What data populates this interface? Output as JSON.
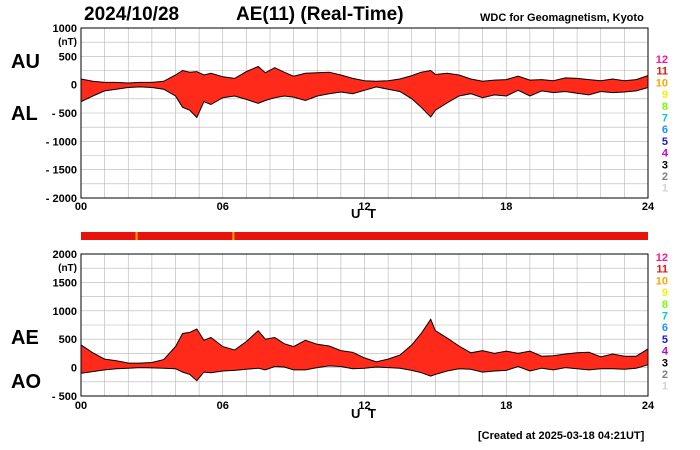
{
  "header": {
    "date": "2024/10/28",
    "title": "AE(11) (Real-Time)",
    "source": "WDC for Geomagnetism, Kyoto"
  },
  "footer": {
    "created": "[Created at 2025-03-18 04:21UT]"
  },
  "station_count_colors": [
    {
      "n": "12",
      "color": "#ff1493"
    },
    {
      "n": "11",
      "color": "#e8140a"
    },
    {
      "n": "10",
      "color": "#ffa500"
    },
    {
      "n": "9",
      "color": "#f2f200"
    },
    {
      "n": "8",
      "color": "#7cfc00"
    },
    {
      "n": "7",
      "color": "#00ced1"
    },
    {
      "n": "6",
      "color": "#1e90ff"
    },
    {
      "n": "5",
      "color": "#1a1acd"
    },
    {
      "n": "4",
      "color": "#cc00cc"
    },
    {
      "n": "3",
      "color": "#000000"
    },
    {
      "n": "2",
      "color": "#808080"
    },
    {
      "n": "1",
      "color": "#d3d3d3"
    }
  ],
  "availability_bar": {
    "color": "#e8140a",
    "orange_marks_hours": [
      2.35,
      6.45
    ],
    "orange_color": "#ffa500"
  },
  "chart_data": [
    {
      "type": "area",
      "name": "AU/AL",
      "labels": [
        "AU",
        "AL"
      ],
      "ylabel": "(nT)",
      "xlabel": "U T",
      "ylim": [
        -2000,
        1000
      ],
      "xlim": [
        0,
        24
      ],
      "yticks": [
        1000,
        500,
        0,
        -500,
        -1000,
        -1500,
        -2000
      ],
      "ytick_labels": [
        "1000",
        "500",
        "0",
        "- 500",
        "- 1000",
        "- 1500",
        "- 2000"
      ],
      "xticks": [
        0,
        6,
        12,
        18,
        24
      ],
      "xtick_labels": [
        "00",
        "06",
        "12",
        "18",
        "24"
      ],
      "fill_color": "#ff2a1a",
      "upper": {
        "x": [
          0,
          0.5,
          1,
          1.5,
          2,
          2.5,
          3,
          3.5,
          4,
          4.3,
          4.6,
          4.9,
          5.2,
          5.5,
          6,
          6.5,
          7,
          7.5,
          7.8,
          8.2,
          8.6,
          9,
          9.5,
          10,
          10.5,
          11,
          11.5,
          12,
          12.5,
          13,
          13.5,
          14,
          14.4,
          14.8,
          15,
          15.5,
          16,
          16.5,
          17,
          17.5,
          18,
          18.5,
          19,
          19.5,
          20,
          20.5,
          21,
          21.5,
          22,
          22.5,
          23,
          23.5,
          24
        ],
        "y": [
          100,
          60,
          40,
          40,
          30,
          40,
          40,
          60,
          170,
          250,
          220,
          230,
          170,
          200,
          140,
          110,
          230,
          320,
          210,
          300,
          220,
          150,
          200,
          210,
          220,
          170,
          110,
          70,
          60,
          70,
          100,
          160,
          220,
          250,
          180,
          200,
          170,
          100,
          60,
          80,
          90,
          150,
          80,
          90,
          70,
          120,
          110,
          90,
          70,
          100,
          70,
          90,
          160
        ]
      },
      "lower": {
        "x": [
          0,
          0.5,
          1,
          1.5,
          2,
          2.5,
          3,
          3.5,
          4,
          4.3,
          4.6,
          4.9,
          5.2,
          5.5,
          6,
          6.5,
          7,
          7.5,
          7.8,
          8.2,
          8.6,
          9,
          9.5,
          10,
          10.5,
          11,
          11.5,
          12,
          12.5,
          13,
          13.5,
          14,
          14.4,
          14.8,
          15,
          15.5,
          16,
          16.5,
          17,
          17.5,
          18,
          18.5,
          19,
          19.5,
          20,
          20.5,
          21,
          21.5,
          22,
          22.5,
          23,
          23.5,
          24
        ],
        "y": [
          -300,
          -200,
          -110,
          -80,
          -50,
          -40,
          -50,
          -80,
          -200,
          -400,
          -450,
          -580,
          -300,
          -350,
          -230,
          -200,
          -260,
          -330,
          -280,
          -230,
          -200,
          -220,
          -280,
          -200,
          -160,
          -130,
          -160,
          -100,
          -40,
          -80,
          -120,
          -250,
          -400,
          -570,
          -450,
          -320,
          -200,
          -160,
          -230,
          -180,
          -200,
          -100,
          -200,
          -110,
          -140,
          -120,
          -150,
          -180,
          -120,
          -140,
          -130,
          -110,
          -50
        ]
      }
    },
    {
      "type": "area",
      "name": "AE/AO",
      "labels": [
        "AE",
        "AO"
      ],
      "ylabel": "(nT)",
      "xlabel": "U T",
      "ylim": [
        -500,
        2000
      ],
      "xlim": [
        0,
        24
      ],
      "yticks": [
        2000,
        1500,
        1000,
        500,
        0,
        -500
      ],
      "ytick_labels": [
        "2000",
        "1500",
        "1000",
        "500",
        "0",
        "- 500"
      ],
      "xticks": [
        0,
        6,
        12,
        18,
        24
      ],
      "xtick_labels": [
        "00",
        "06",
        "12",
        "18",
        "24"
      ],
      "fill_color": "#ff2a1a",
      "upper": {
        "x": [
          0,
          0.5,
          1,
          1.5,
          2,
          2.5,
          3,
          3.5,
          4,
          4.3,
          4.6,
          4.9,
          5.2,
          5.5,
          6,
          6.5,
          7,
          7.5,
          7.8,
          8.2,
          8.6,
          9,
          9.5,
          10,
          10.5,
          11,
          11.5,
          12,
          12.5,
          13,
          13.5,
          14,
          14.4,
          14.8,
          15,
          15.5,
          16,
          16.5,
          17,
          17.5,
          18,
          18.5,
          19,
          19.5,
          20,
          20.5,
          21,
          21.5,
          22,
          22.5,
          23,
          23.5,
          24
        ],
        "y": [
          400,
          260,
          150,
          120,
          80,
          80,
          90,
          140,
          370,
          600,
          620,
          680,
          480,
          530,
          370,
          310,
          460,
          650,
          500,
          530,
          420,
          370,
          480,
          410,
          380,
          300,
          270,
          170,
          100,
          150,
          220,
          400,
          600,
          850,
          650,
          520,
          380,
          260,
          300,
          250,
          290,
          250,
          290,
          200,
          210,
          240,
          260,
          270,
          190,
          240,
          200,
          200,
          330
        ]
      },
      "lower": {
        "x": [
          0,
          0.5,
          1,
          1.5,
          2,
          2.5,
          3,
          3.5,
          4,
          4.3,
          4.6,
          4.9,
          5.2,
          5.5,
          6,
          6.5,
          7,
          7.5,
          7.8,
          8.2,
          8.6,
          9,
          9.5,
          10,
          10.5,
          11,
          11.5,
          12,
          12.5,
          13,
          13.5,
          14,
          14.4,
          14.8,
          15,
          15.5,
          16,
          16.5,
          17,
          17.5,
          18,
          18.5,
          19,
          19.5,
          20,
          20.5,
          21,
          21.5,
          22,
          22.5,
          23,
          23.5,
          24
        ],
        "y": [
          -100,
          -70,
          -40,
          -20,
          -10,
          0,
          -5,
          -10,
          -20,
          -80,
          -120,
          -230,
          -80,
          -90,
          -60,
          -50,
          -30,
          -10,
          -40,
          20,
          10,
          -40,
          -40,
          0,
          30,
          20,
          -20,
          -10,
          10,
          0,
          -10,
          -50,
          -90,
          -150,
          -120,
          -60,
          -20,
          -30,
          -80,
          -60,
          -50,
          20,
          -60,
          -10,
          -40,
          0,
          -20,
          -40,
          -20,
          -20,
          -30,
          -10,
          50
        ]
      }
    }
  ]
}
